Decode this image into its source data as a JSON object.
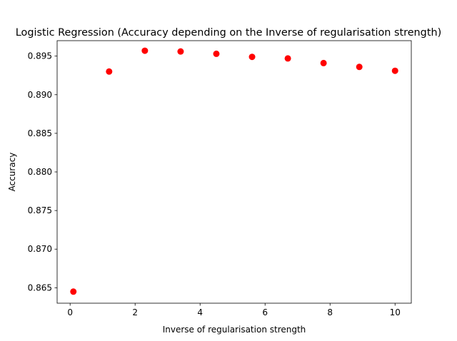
{
  "chart_data": {
    "type": "scatter",
    "title": "Logistic Regression (Accuracy depending on the Inverse of regularisation strength)",
    "xlabel": "Inverse of regularisation strength",
    "ylabel": "Accuracy",
    "xlim": [
      -0.4,
      10.5
    ],
    "ylim": [
      0.863,
      0.897
    ],
    "xticks": [
      0,
      2,
      4,
      6,
      8,
      10
    ],
    "xtick_labels": [
      "0",
      "2",
      "4",
      "6",
      "8",
      "10"
    ],
    "yticks": [
      0.865,
      0.87,
      0.875,
      0.88,
      0.885,
      0.89,
      0.895
    ],
    "ytick_labels": [
      "0.865",
      "0.870",
      "0.875",
      "0.880",
      "0.885",
      "0.890",
      "0.895"
    ],
    "grid": false,
    "series": [
      {
        "color": "#ff0000",
        "x": [
          0.1,
          1.2,
          2.3,
          3.4,
          4.5,
          5.6,
          6.7,
          7.8,
          8.9,
          10.0
        ],
        "y": [
          0.8645,
          0.893,
          0.8957,
          0.8956,
          0.8953,
          0.8949,
          0.8947,
          0.8941,
          0.8936,
          0.8931
        ]
      }
    ]
  }
}
